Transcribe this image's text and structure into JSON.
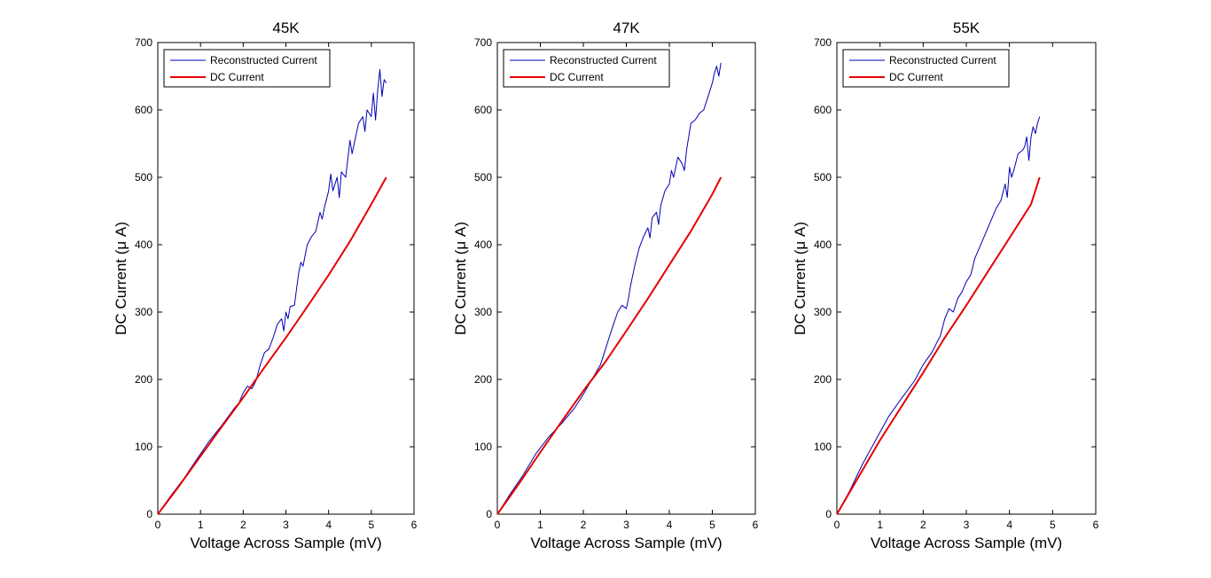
{
  "figure": {
    "background": "#ffffff"
  },
  "colors": {
    "reconstructed": "#0000b4",
    "dc": "#e60000",
    "axis": "#000000"
  },
  "chart_data": [
    {
      "type": "line",
      "title": "45K",
      "xlabel": "Voltage Across Sample (mV)",
      "ylabel": "DC Current (μ A)",
      "xlim": [
        0,
        6
      ],
      "ylim": [
        0,
        700
      ],
      "xticks": [
        0,
        1,
        2,
        3,
        4,
        5,
        6
      ],
      "yticks": [
        0,
        100,
        200,
        300,
        400,
        500,
        600,
        700
      ],
      "legend": {
        "position": "top-left",
        "entries": [
          "Reconstructed Current",
          "DC Current"
        ]
      },
      "series": [
        {
          "name": "Reconstructed Current",
          "x": [
            0,
            0.3,
            0.6,
            0.9,
            1.2,
            1.5,
            1.8,
            1.9,
            2.0,
            2.1,
            2.2,
            2.3,
            2.4,
            2.5,
            2.6,
            2.7,
            2.8,
            2.9,
            2.95,
            3.0,
            3.05,
            3.1,
            3.2,
            3.3,
            3.35,
            3.4,
            3.5,
            3.6,
            3.7,
            3.8,
            3.85,
            3.9,
            4.0,
            4.05,
            4.1,
            4.2,
            4.25,
            4.3,
            4.4,
            4.5,
            4.55,
            4.6,
            4.7,
            4.8,
            4.85,
            4.9,
            5.0,
            5.05,
            5.1,
            5.15,
            5.2,
            5.25,
            5.3,
            5.35
          ],
          "y": [
            0,
            27,
            52,
            80,
            108,
            132,
            158,
            165,
            180,
            190,
            186,
            198,
            222,
            240,
            245,
            262,
            282,
            290,
            272,
            300,
            290,
            308,
            310,
            358,
            374,
            368,
            400,
            412,
            420,
            448,
            438,
            455,
            480,
            505,
            480,
            500,
            470,
            508,
            500,
            555,
            535,
            550,
            580,
            590,
            568,
            600,
            590,
            625,
            585,
            630,
            660,
            620,
            645,
            640
          ]
        },
        {
          "name": "DC Current",
          "x": [
            0,
            0.5,
            1,
            1.5,
            2,
            2.5,
            3,
            3.5,
            4,
            4.5,
            5,
            5.35
          ],
          "y": [
            0,
            42,
            86,
            130,
            173,
            218,
            262,
            308,
            355,
            405,
            460,
            500
          ]
        }
      ]
    },
    {
      "type": "line",
      "title": "47K",
      "xlabel": "Voltage Across Sample (mV)",
      "ylabel": "DC Current (μ A)",
      "xlim": [
        0,
        6
      ],
      "ylim": [
        0,
        700
      ],
      "xticks": [
        0,
        1,
        2,
        3,
        4,
        5,
        6
      ],
      "yticks": [
        0,
        100,
        200,
        300,
        400,
        500,
        600,
        700
      ],
      "legend": {
        "position": "top-left",
        "entries": [
          "Reconstructed Current",
          "DC Current"
        ]
      },
      "series": [
        {
          "name": "Reconstructed Current",
          "x": [
            0,
            0.3,
            0.6,
            0.9,
            1.2,
            1.5,
            1.8,
            2.0,
            2.2,
            2.4,
            2.6,
            2.7,
            2.8,
            2.9,
            3.0,
            3.05,
            3.1,
            3.2,
            3.3,
            3.4,
            3.5,
            3.55,
            3.6,
            3.7,
            3.75,
            3.8,
            3.9,
            4.0,
            4.05,
            4.1,
            4.2,
            4.3,
            4.35,
            4.4,
            4.5,
            4.6,
            4.7,
            4.8,
            4.9,
            5.0,
            5.05,
            5.1,
            5.15,
            5.2
          ],
          "y": [
            0,
            30,
            58,
            90,
            115,
            135,
            158,
            178,
            200,
            222,
            262,
            282,
            300,
            310,
            305,
            320,
            340,
            370,
            395,
            412,
            425,
            410,
            440,
            448,
            430,
            458,
            480,
            490,
            510,
            500,
            530,
            520,
            510,
            540,
            580,
            585,
            595,
            600,
            620,
            640,
            655,
            665,
            650,
            670
          ]
        },
        {
          "name": "DC Current",
          "x": [
            0,
            0.5,
            1,
            1.5,
            2,
            2.5,
            3,
            3.5,
            4,
            4.5,
            5,
            5.2
          ],
          "y": [
            0,
            45,
            92,
            138,
            183,
            225,
            272,
            320,
            370,
            420,
            475,
            500
          ]
        }
      ]
    },
    {
      "type": "line",
      "title": "55K",
      "xlabel": "Voltage Across Sample (mV)",
      "ylabel": "DC Current (μ A)",
      "xlim": [
        0,
        6
      ],
      "ylim": [
        0,
        700
      ],
      "xticks": [
        0,
        1,
        2,
        3,
        4,
        5,
        6
      ],
      "yticks": [
        0,
        100,
        200,
        300,
        400,
        500,
        600,
        700
      ],
      "legend": {
        "position": "top-left",
        "entries": [
          "Reconstructed Current",
          "DC Current"
        ]
      },
      "series": [
        {
          "name": "Reconstructed Current",
          "x": [
            0,
            0.3,
            0.6,
            0.9,
            1.2,
            1.5,
            1.8,
            2.0,
            2.2,
            2.4,
            2.5,
            2.6,
            2.7,
            2.8,
            2.9,
            3.0,
            3.1,
            3.2,
            3.3,
            3.4,
            3.5,
            3.6,
            3.7,
            3.8,
            3.9,
            3.95,
            4.0,
            4.05,
            4.1,
            4.2,
            4.3,
            4.35,
            4.4,
            4.45,
            4.5,
            4.55,
            4.6,
            4.65,
            4.7
          ],
          "y": [
            0,
            35,
            75,
            110,
            145,
            172,
            198,
            222,
            240,
            265,
            290,
            305,
            300,
            320,
            330,
            345,
            355,
            380,
            395,
            410,
            425,
            440,
            455,
            465,
            490,
            470,
            515,
            500,
            510,
            535,
            540,
            545,
            560,
            525,
            560,
            575,
            565,
            580,
            590
          ]
        },
        {
          "name": "DC Current",
          "x": [
            0,
            0.5,
            1,
            1.5,
            2,
            2.5,
            3,
            3.5,
            4,
            4.5,
            4.7
          ],
          "y": [
            0,
            55,
            110,
            160,
            210,
            262,
            310,
            360,
            410,
            460,
            500
          ]
        }
      ]
    }
  ]
}
